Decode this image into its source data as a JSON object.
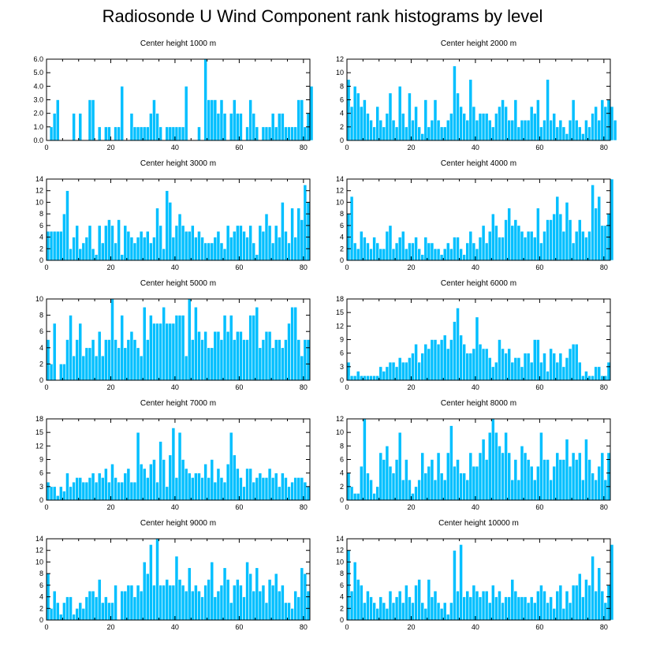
{
  "title": "Radiosonde U Wind Component rank histograms by level",
  "colors": {
    "bar": "#00bfff",
    "bar_edge": "#ffffff",
    "frame": "#000000"
  },
  "chart_data": [
    {
      "type": "bar",
      "title": "Center height 1000 m",
      "xlim": [
        0,
        82
      ],
      "ylim": [
        0,
        6
      ],
      "xticks": [
        0,
        20,
        40,
        60,
        80
      ],
      "yticks": [
        0,
        1,
        2,
        3,
        4,
        5,
        6
      ],
      "ytick_labels": [
        "0.0",
        "1.0",
        "2.0",
        "3.0",
        "4.0",
        "5.0",
        "6.0"
      ],
      "values": [
        0,
        1,
        2,
        3,
        0,
        0,
        0,
        0,
        2,
        0,
        2,
        0,
        0,
        3,
        3,
        0,
        1,
        0,
        1,
        1,
        0,
        1,
        1,
        4,
        0,
        0,
        2,
        1,
        1,
        1,
        1,
        1,
        2,
        3,
        2,
        1,
        0,
        1,
        1,
        1,
        1,
        1,
        1,
        4,
        0,
        0,
        0,
        1,
        0,
        6,
        3,
        3,
        3,
        2,
        3,
        2,
        0,
        2,
        3,
        2,
        2,
        0,
        1,
        3,
        2,
        1,
        0,
        1,
        1,
        1,
        2,
        1,
        2,
        2,
        1,
        1,
        1,
        1,
        3,
        3,
        1,
        2,
        4
      ]
    },
    {
      "type": "bar",
      "title": "Center height 2000 m",
      "xlim": [
        0,
        82
      ],
      "ylim": [
        0,
        12
      ],
      "xticks": [
        0,
        20,
        40,
        60,
        80
      ],
      "yticks": [
        0,
        2,
        4,
        6,
        8,
        10,
        12
      ],
      "ytick_labels": [
        "0",
        "2",
        "4",
        "6",
        "8",
        "10",
        "12"
      ],
      "values": [
        9,
        5,
        8,
        7,
        5,
        6,
        4,
        3,
        2,
        5,
        3,
        2,
        4,
        7,
        3,
        2,
        8,
        4,
        2,
        7,
        3,
        5,
        2,
        1,
        6,
        2,
        3,
        6,
        3,
        2,
        2,
        3,
        4,
        11,
        7,
        5,
        4,
        3,
        9,
        5,
        3,
        4,
        4,
        4,
        3,
        2,
        4,
        5,
        6,
        5,
        3,
        3,
        6,
        2,
        3,
        3,
        3,
        5,
        4,
        6,
        2,
        3,
        9,
        3,
        4,
        2,
        3,
        2,
        1,
        3,
        6,
        3,
        2,
        1,
        3,
        2,
        4,
        5,
        3,
        6,
        5,
        6,
        5,
        3
      ]
    },
    {
      "type": "bar",
      "title": "Center height 3000 m",
      "xlim": [
        0,
        82
      ],
      "ylim": [
        0,
        14
      ],
      "xticks": [
        0,
        20,
        40,
        60,
        80
      ],
      "yticks": [
        0,
        2,
        4,
        6,
        8,
        10,
        12,
        14
      ],
      "ytick_labels": [
        "0",
        "2",
        "4",
        "6",
        "8",
        "10",
        "12",
        "14"
      ],
      "values": [
        5,
        5,
        5,
        5,
        5,
        8,
        12,
        2,
        4,
        6,
        2,
        3,
        4,
        6,
        2,
        1,
        6,
        3,
        6,
        7,
        6,
        3,
        7,
        1,
        6,
        5,
        4,
        3,
        4,
        5,
        4,
        5,
        3,
        4,
        9,
        6,
        2,
        12,
        10,
        4,
        6,
        8,
        6,
        5,
        5,
        6,
        4,
        5,
        4,
        3,
        3,
        3,
        4,
        5,
        3,
        2,
        6,
        4,
        5,
        6,
        6,
        5,
        4,
        6,
        3,
        1,
        6,
        5,
        8,
        6,
        3,
        6,
        4,
        10,
        5,
        3,
        9,
        4,
        9,
        7,
        13,
        10
      ]
    },
    {
      "type": "bar",
      "title": "Center height 4000 m",
      "xlim": [
        0,
        82
      ],
      "ylim": [
        0,
        14
      ],
      "xticks": [
        0,
        20,
        40,
        60,
        80
      ],
      "yticks": [
        0,
        2,
        4,
        6,
        8,
        10,
        12,
        14
      ],
      "ytick_labels": [
        "0",
        "2",
        "4",
        "6",
        "8",
        "10",
        "12",
        "14"
      ],
      "values": [
        8,
        11,
        3,
        2,
        5,
        4,
        3,
        2,
        4,
        3,
        2,
        2,
        5,
        6,
        2,
        3,
        4,
        5,
        2,
        3,
        3,
        4,
        2,
        1,
        4,
        3,
        3,
        2,
        2,
        1,
        2,
        3,
        2,
        4,
        4,
        2,
        1,
        3,
        5,
        3,
        2,
        4,
        6,
        3,
        5,
        8,
        6,
        4,
        4,
        7,
        9,
        6,
        7,
        6,
        5,
        4,
        5,
        5,
        4,
        9,
        3,
        5,
        7,
        7,
        8,
        11,
        8,
        5,
        10,
        7,
        3,
        5,
        7,
        5,
        4,
        5,
        13,
        9,
        11,
        6,
        6,
        8,
        14
      ]
    },
    {
      "type": "bar",
      "title": "Center height 5000 m",
      "xlim": [
        0,
        82
      ],
      "ylim": [
        0,
        10
      ],
      "xticks": [
        0,
        20,
        40,
        60,
        80
      ],
      "yticks": [
        0,
        2,
        4,
        6,
        8,
        10
      ],
      "ytick_labels": [
        "0",
        "2",
        "4",
        "6",
        "8",
        "10"
      ],
      "values": [
        5,
        2,
        7,
        0,
        2,
        2,
        5,
        8,
        3,
        5,
        7,
        3,
        4,
        4,
        5,
        3,
        6,
        3,
        5,
        5,
        10,
        5,
        4,
        8,
        4,
        5,
        6,
        5,
        4,
        3,
        9,
        5,
        8,
        7,
        7,
        7,
        9,
        7,
        7,
        7,
        8,
        8,
        8,
        3,
        10,
        5,
        9,
        6,
        5,
        6,
        4,
        4,
        6,
        6,
        5,
        8,
        6,
        8,
        5,
        6,
        6,
        5,
        5,
        8,
        8,
        9,
        4,
        5,
        6,
        6,
        4,
        5,
        5,
        4,
        5,
        7,
        9,
        9,
        5,
        3,
        5,
        5
      ]
    },
    {
      "type": "bar",
      "title": "Center height 6000 m",
      "xlim": [
        0,
        82
      ],
      "ylim": [
        0,
        18
      ],
      "xticks": [
        0,
        20,
        40,
        60,
        80
      ],
      "yticks": [
        0,
        3,
        6,
        9,
        12,
        15,
        18
      ],
      "ytick_labels": [
        "0",
        "3",
        "6",
        "9",
        "12",
        "15",
        "18"
      ],
      "values": [
        4,
        1,
        1,
        2,
        1,
        1,
        1,
        1,
        1,
        1,
        3,
        2,
        3,
        4,
        4,
        3,
        5,
        4,
        4,
        5,
        6,
        8,
        4,
        6,
        8,
        7,
        9,
        9,
        8,
        9,
        10,
        7,
        9,
        13,
        16,
        10,
        8,
        6,
        6,
        7,
        14,
        8,
        7,
        7,
        5,
        3,
        4,
        9,
        7,
        6,
        7,
        4,
        5,
        5,
        3,
        6,
        6,
        4,
        9,
        9,
        4,
        6,
        2,
        7,
        6,
        4,
        6,
        3,
        5,
        7,
        8,
        8,
        4,
        1,
        2,
        1,
        1,
        3,
        3,
        1,
        1,
        4
      ]
    },
    {
      "type": "bar",
      "title": "Center height 7000 m",
      "xlim": [
        0,
        82
      ],
      "ylim": [
        0,
        18
      ],
      "xticks": [
        0,
        20,
        40,
        60,
        80
      ],
      "yticks": [
        0,
        3,
        6,
        9,
        12,
        15,
        18
      ],
      "ytick_labels": [
        "0",
        "3",
        "6",
        "9",
        "12",
        "15",
        "18"
      ],
      "values": [
        4,
        3,
        3,
        1,
        3,
        2,
        6,
        3,
        4,
        5,
        5,
        4,
        4,
        5,
        6,
        4,
        6,
        5,
        7,
        4,
        8,
        5,
        4,
        4,
        6,
        7,
        4,
        4,
        15,
        8,
        7,
        5,
        8,
        9,
        4,
        13,
        9,
        3,
        10,
        16,
        5,
        15,
        9,
        7,
        6,
        5,
        6,
        6,
        5,
        8,
        5,
        9,
        4,
        7,
        5,
        4,
        8,
        15,
        10,
        7,
        5,
        3,
        7,
        7,
        4,
        5,
        6,
        5,
        5,
        7,
        5,
        6,
        3,
        6,
        5,
        3,
        4,
        5,
        5,
        5,
        4,
        3
      ]
    },
    {
      "type": "bar",
      "title": "Center height 8000 m",
      "xlim": [
        0,
        82
      ],
      "ylim": [
        0,
        12
      ],
      "xticks": [
        0,
        20,
        40,
        60,
        80
      ],
      "yticks": [
        0,
        2,
        4,
        6,
        8,
        10,
        12
      ],
      "ytick_labels": [
        "0",
        "2",
        "4",
        "6",
        "8",
        "10",
        "12"
      ],
      "values": [
        4,
        2,
        1,
        1,
        5,
        12,
        4,
        3,
        1,
        2,
        7,
        6,
        8,
        5,
        4,
        6,
        10,
        3,
        6,
        3,
        1,
        2,
        3,
        7,
        4,
        5,
        6,
        3,
        7,
        4,
        3,
        7,
        11,
        5,
        6,
        4,
        4,
        3,
        7,
        5,
        5,
        7,
        9,
        6,
        10,
        12,
        10,
        8,
        7,
        10,
        7,
        3,
        6,
        3,
        8,
        7,
        6,
        5,
        3,
        5,
        10,
        6,
        6,
        3,
        5,
        7,
        6,
        6,
        9,
        5,
        7,
        6,
        7,
        3,
        9,
        6,
        4,
        3,
        5,
        7,
        3,
        7
      ]
    },
    {
      "type": "bar",
      "title": "Center height 9000 m",
      "xlim": [
        0,
        82
      ],
      "ylim": [
        0,
        14
      ],
      "xticks": [
        0,
        20,
        40,
        60,
        80
      ],
      "yticks": [
        0,
        2,
        4,
        6,
        8,
        10,
        12,
        14
      ],
      "ytick_labels": [
        "0",
        "2",
        "4",
        "6",
        "8",
        "10",
        "12",
        "14"
      ],
      "values": [
        8,
        2,
        5,
        3,
        1,
        3,
        4,
        4,
        1,
        2,
        3,
        2,
        4,
        5,
        5,
        4,
        7,
        3,
        4,
        3,
        3,
        6,
        0,
        5,
        5,
        6,
        6,
        4,
        6,
        5,
        10,
        8,
        13,
        6,
        14,
        6,
        6,
        7,
        6,
        6,
        11,
        7,
        6,
        5,
        9,
        5,
        6,
        5,
        4,
        6,
        7,
        10,
        4,
        5,
        6,
        9,
        7,
        3,
        6,
        7,
        6,
        4,
        10,
        8,
        5,
        9,
        5,
        6,
        3,
        7,
        6,
        8,
        5,
        6,
        3,
        3,
        2,
        5,
        4,
        9,
        8,
        5
      ]
    },
    {
      "type": "bar",
      "title": "Center height 10000 m",
      "xlim": [
        0,
        82
      ],
      "ylim": [
        0,
        14
      ],
      "xticks": [
        0,
        20,
        40,
        60,
        80
      ],
      "yticks": [
        0,
        2,
        4,
        6,
        8,
        10,
        12,
        14
      ],
      "ytick_labels": [
        "0",
        "2",
        "4",
        "6",
        "8",
        "10",
        "12",
        "14"
      ],
      "values": [
        12,
        5,
        10,
        7,
        6,
        3,
        5,
        4,
        3,
        2,
        4,
        3,
        2,
        5,
        3,
        4,
        5,
        3,
        6,
        4,
        3,
        6,
        7,
        3,
        2,
        7,
        4,
        5,
        3,
        2,
        3,
        1,
        3,
        12,
        5,
        13,
        4,
        5,
        4,
        6,
        5,
        4,
        5,
        5,
        3,
        6,
        4,
        5,
        3,
        4,
        4,
        7,
        5,
        4,
        4,
        4,
        3,
        4,
        3,
        5,
        6,
        5,
        3,
        4,
        2,
        5,
        6,
        2,
        5,
        3,
        6,
        6,
        8,
        4,
        7,
        6,
        11,
        5,
        9,
        5,
        3,
        6,
        13
      ]
    }
  ]
}
